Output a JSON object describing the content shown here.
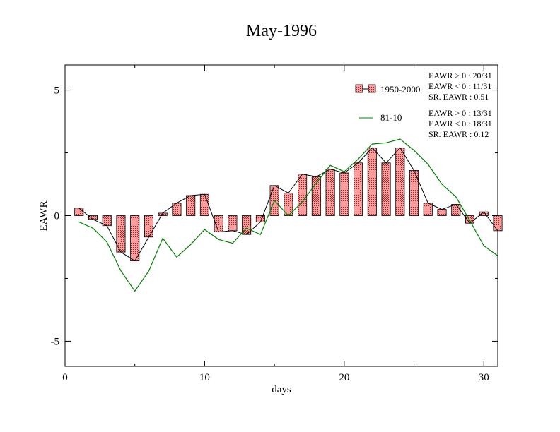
{
  "title": "May-1996",
  "chart_data": {
    "type": "bar",
    "title": "May-1996",
    "xlabel": "days",
    "ylabel": "EAWR",
    "xlim": [
      0,
      31
    ],
    "ylim": [
      -6,
      6
    ],
    "x_ticks": [
      0,
      10,
      20,
      30
    ],
    "y_ticks": [
      -5,
      0,
      5
    ],
    "x_tick_labels": [
      "0",
      "10",
      "20",
      "30"
    ],
    "y_tick_labels": [
      "-5",
      "0",
      "5"
    ],
    "grid": false,
    "legend_position": "top-right",
    "days": [
      1,
      2,
      3,
      4,
      5,
      6,
      7,
      8,
      9,
      10,
      11,
      12,
      13,
      14,
      15,
      16,
      17,
      18,
      19,
      20,
      21,
      22,
      23,
      24,
      25,
      26,
      27,
      28,
      29,
      30,
      31
    ],
    "series": [
      {
        "name": "1950-2000",
        "kind": "bar+line",
        "color": "#e06060",
        "values": [
          0.3,
          -0.15,
          -0.4,
          -1.45,
          -1.8,
          -0.85,
          0.1,
          0.5,
          0.8,
          0.85,
          -0.65,
          -0.6,
          -0.75,
          -0.25,
          1.2,
          0.9,
          1.65,
          1.55,
          1.85,
          1.7,
          2.1,
          2.7,
          2.1,
          2.7,
          1.8,
          0.5,
          0.25,
          0.45,
          -0.3,
          0.15,
          -0.6
        ]
      },
      {
        "name": "81-10",
        "kind": "line",
        "color": "#008000",
        "values": [
          -0.25,
          -0.5,
          -1.05,
          -2.2,
          -3.0,
          -2.2,
          -0.9,
          -1.65,
          -1.15,
          -0.55,
          -0.95,
          -1.1,
          -0.5,
          -0.75,
          0.6,
          0.0,
          0.55,
          1.3,
          2.0,
          1.75,
          2.25,
          2.85,
          2.9,
          3.05,
          2.6,
          2.05,
          1.25,
          0.75,
          -0.2,
          -1.2,
          -1.6
        ]
      }
    ],
    "stats_1950_2000": [
      "EAWR > 0 : 20/31",
      "EAWR < 0 : 11/31",
      "SR. EAWR :  0.51"
    ],
    "stats_81_10": [
      "EAWR > 0 : 13/31",
      "EAWR < 0 : 18/31",
      "SR. EAWR :  0.12"
    ]
  }
}
